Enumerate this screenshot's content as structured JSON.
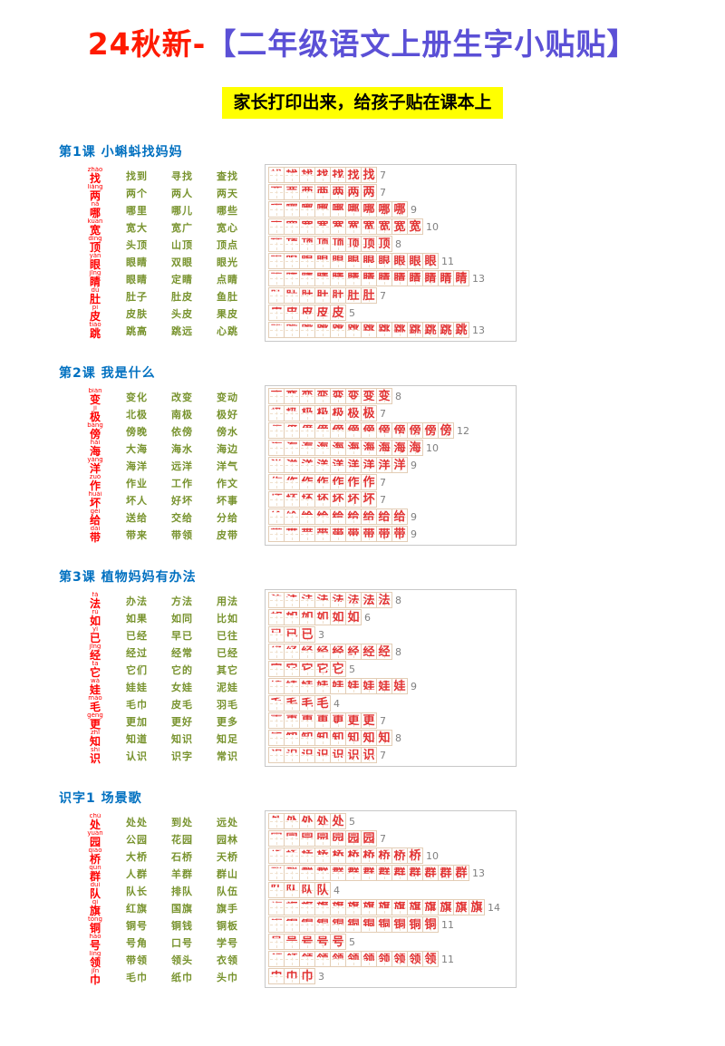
{
  "header": {
    "title_prefix": "24秋新-",
    "title_main": "【二年级语文上册生字小贴贴】",
    "subtitle": "家长打印出来，给孩子贴在课本上"
  },
  "colors": {
    "title_prefix": "#ff1a00",
    "title_main": "#5b50d6",
    "subtitle_bg": "#ffff00",
    "section_header": "#0070c0",
    "hanzi": "#ff0000",
    "word": "#78932e",
    "stroke_glyph": "#e23333",
    "stroke_count": "#808080",
    "grid_line": "#e3cdb5"
  },
  "sections": [
    {
      "header": "第1课 小蝌蚪找妈妈",
      "rows": [
        {
          "char": "找",
          "pinyin": "zhǎo",
          "strokes": 7,
          "words": [
            "找到",
            "寻找",
            "查找"
          ]
        },
        {
          "char": "两",
          "pinyin": "liǎng",
          "strokes": 7,
          "words": [
            "两个",
            "两人",
            "两天"
          ]
        },
        {
          "char": "哪",
          "pinyin": "nǎ",
          "strokes": 9,
          "words": [
            "哪里",
            "哪儿",
            "哪些"
          ]
        },
        {
          "char": "宽",
          "pinyin": "kuān",
          "strokes": 10,
          "words": [
            "宽大",
            "宽广",
            "宽心"
          ]
        },
        {
          "char": "顶",
          "pinyin": "dǐng",
          "strokes": 8,
          "words": [
            "头顶",
            "山顶",
            "顶点"
          ]
        },
        {
          "char": "眼",
          "pinyin": "yǎn",
          "strokes": 11,
          "words": [
            "眼睛",
            "双眼",
            "眼光"
          ]
        },
        {
          "char": "睛",
          "pinyin": "jīng",
          "strokes": 13,
          "words": [
            "眼睛",
            "定睛",
            "点睛"
          ]
        },
        {
          "char": "肚",
          "pinyin": "dù",
          "strokes": 7,
          "words": [
            "肚子",
            "肚皮",
            "鱼肚"
          ]
        },
        {
          "char": "皮",
          "pinyin": "pí",
          "strokes": 5,
          "words": [
            "皮肤",
            "头皮",
            "果皮"
          ]
        },
        {
          "char": "跳",
          "pinyin": "tiào",
          "strokes": 13,
          "words": [
            "跳高",
            "跳远",
            "心跳"
          ]
        }
      ]
    },
    {
      "header": "第2课 我是什么",
      "rows": [
        {
          "char": "变",
          "pinyin": "biàn",
          "strokes": 8,
          "words": [
            "变化",
            "改变",
            "变动"
          ]
        },
        {
          "char": "极",
          "pinyin": "jí",
          "strokes": 7,
          "words": [
            "北极",
            "南极",
            "极好"
          ]
        },
        {
          "char": "傍",
          "pinyin": "bàng",
          "strokes": 12,
          "words": [
            "傍晚",
            "依傍",
            "傍水"
          ]
        },
        {
          "char": "海",
          "pinyin": "hǎi",
          "strokes": 10,
          "words": [
            "大海",
            "海水",
            "海边"
          ]
        },
        {
          "char": "洋",
          "pinyin": "yáng",
          "strokes": 9,
          "words": [
            "海洋",
            "远洋",
            "洋气"
          ]
        },
        {
          "char": "作",
          "pinyin": "zuò",
          "strokes": 7,
          "words": [
            "作业",
            "工作",
            "作文"
          ]
        },
        {
          "char": "坏",
          "pinyin": "huài",
          "strokes": 7,
          "words": [
            "坏人",
            "好坏",
            "坏事"
          ]
        },
        {
          "char": "给",
          "pinyin": "gěi",
          "strokes": 9,
          "words": [
            "送给",
            "交给",
            "分给"
          ]
        },
        {
          "char": "带",
          "pinyin": "dài",
          "strokes": 9,
          "words": [
            "带来",
            "带领",
            "皮带"
          ]
        }
      ]
    },
    {
      "header": "第3课 植物妈妈有办法",
      "rows": [
        {
          "char": "法",
          "pinyin": "fǎ",
          "strokes": 8,
          "words": [
            "办法",
            "方法",
            "用法"
          ]
        },
        {
          "char": "如",
          "pinyin": "rú",
          "strokes": 6,
          "words": [
            "如果",
            "如同",
            "比如"
          ]
        },
        {
          "char": "已",
          "pinyin": "yǐ",
          "strokes": 3,
          "words": [
            "已经",
            "早已",
            "已往"
          ]
        },
        {
          "char": "经",
          "pinyin": "jīng",
          "strokes": 8,
          "words": [
            "经过",
            "经常",
            "已经"
          ]
        },
        {
          "char": "它",
          "pinyin": "tā",
          "strokes": 5,
          "words": [
            "它们",
            "它的",
            "其它"
          ]
        },
        {
          "char": "娃",
          "pinyin": "wá",
          "strokes": 9,
          "words": [
            "娃娃",
            "女娃",
            "泥娃"
          ]
        },
        {
          "char": "毛",
          "pinyin": "máo",
          "strokes": 4,
          "words": [
            "毛巾",
            "皮毛",
            "羽毛"
          ]
        },
        {
          "char": "更",
          "pinyin": "gèng",
          "strokes": 7,
          "words": [
            "更加",
            "更好",
            "更多"
          ]
        },
        {
          "char": "知",
          "pinyin": "zhī",
          "strokes": 8,
          "words": [
            "知道",
            "知识",
            "知足"
          ]
        },
        {
          "char": "识",
          "pinyin": "shí",
          "strokes": 7,
          "words": [
            "认识",
            "识字",
            "常识"
          ]
        }
      ]
    },
    {
      "header": "识字1 场景歌",
      "rows": [
        {
          "char": "处",
          "pinyin": "chù",
          "strokes": 5,
          "words": [
            "处处",
            "到处",
            "远处"
          ]
        },
        {
          "char": "园",
          "pinyin": "yuán",
          "strokes": 7,
          "words": [
            "公园",
            "花园",
            "园林"
          ]
        },
        {
          "char": "桥",
          "pinyin": "qiáo",
          "strokes": 10,
          "words": [
            "大桥",
            "石桥",
            "天桥"
          ]
        },
        {
          "char": "群",
          "pinyin": "qún",
          "strokes": 13,
          "words": [
            "人群",
            "羊群",
            "群山"
          ]
        },
        {
          "char": "队",
          "pinyin": "duì",
          "strokes": 4,
          "words": [
            "队长",
            "排队",
            "队伍"
          ]
        },
        {
          "char": "旗",
          "pinyin": "qí",
          "strokes": 14,
          "words": [
            "红旗",
            "国旗",
            "旗手"
          ]
        },
        {
          "char": "铜",
          "pinyin": "tóng",
          "strokes": 11,
          "words": [
            "铜号",
            "铜钱",
            "铜板"
          ]
        },
        {
          "char": "号",
          "pinyin": "hào",
          "strokes": 5,
          "words": [
            "号角",
            "口号",
            "学号"
          ]
        },
        {
          "char": "领",
          "pinyin": "lǐng",
          "strokes": 11,
          "words": [
            "带领",
            "领头",
            "衣领"
          ]
        },
        {
          "char": "巾",
          "pinyin": "jīn",
          "strokes": 3,
          "words": [
            "毛巾",
            "纸巾",
            "头巾"
          ]
        }
      ]
    }
  ]
}
